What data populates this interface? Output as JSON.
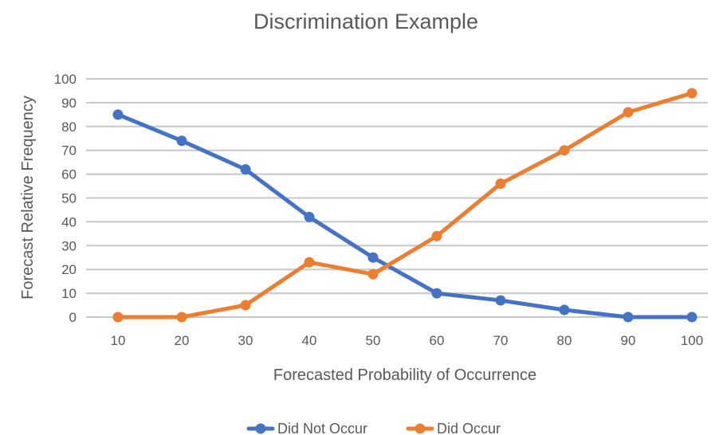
{
  "chart_data": {
    "type": "line",
    "title": "Discrimination Example",
    "xlabel": "Forecasted Probability of Occurrence",
    "ylabel": "Forecast Relative Frequency",
    "x": [
      10,
      20,
      30,
      40,
      50,
      60,
      70,
      80,
      90,
      100
    ],
    "ylim": [
      0,
      100
    ],
    "yticks": [
      0,
      10,
      20,
      30,
      40,
      50,
      60,
      70,
      80,
      90,
      100
    ],
    "grid": true,
    "legend_position": "bottom",
    "series": [
      {
        "name": "Did Not Occur",
        "color": "#4472c4",
        "values": [
          85,
          74,
          62,
          42,
          25,
          10,
          7,
          3,
          0,
          0
        ]
      },
      {
        "name": "Did Occur",
        "color": "#ed7d31",
        "values": [
          0,
          0,
          5,
          23,
          18,
          34,
          56,
          70,
          86,
          94
        ]
      }
    ]
  }
}
